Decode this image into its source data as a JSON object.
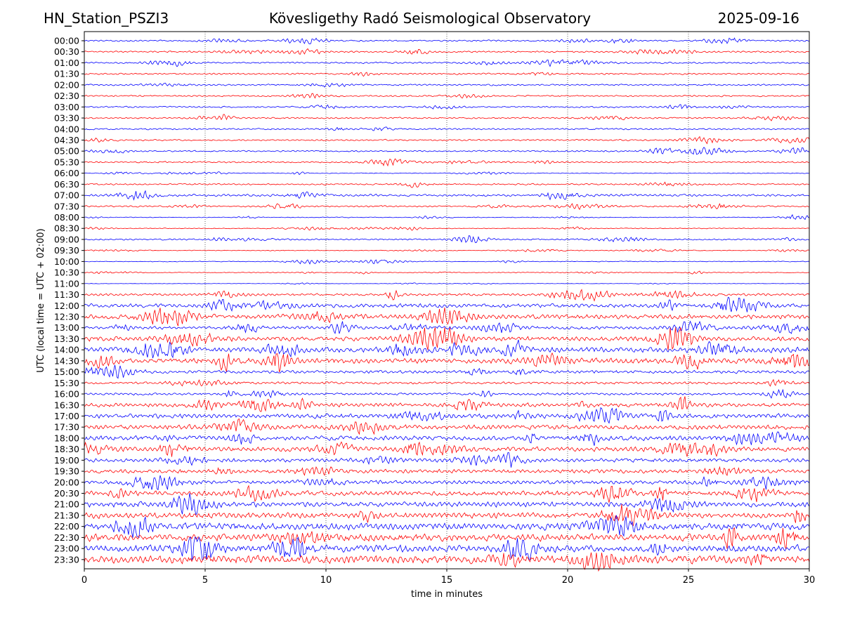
{
  "header": {
    "station": "HN_Station_PSZI3",
    "title": "Kövesligethy Radó Seismological Observatory",
    "date": "2025-09-16"
  },
  "chart_data": {
    "type": "line",
    "subtype": "helicorder",
    "xlabel": "time in minutes",
    "ylabel": "UTC (local time = UTC + 02:00)",
    "xlim": [
      0,
      30
    ],
    "xticks": [
      "0",
      "5",
      "10",
      "15",
      "20",
      "25",
      "30"
    ],
    "grid": "vertical dotted lines at 5-minute intervals",
    "colors": [
      "#0000ff",
      "#ff0000"
    ],
    "rows": [
      "00:00",
      "00:30",
      "01:00",
      "01:30",
      "02:00",
      "02:30",
      "03:00",
      "03:30",
      "04:00",
      "04:30",
      "05:00",
      "05:30",
      "06:00",
      "06:30",
      "07:00",
      "07:30",
      "08:00",
      "08:30",
      "09:00",
      "09:30",
      "10:00",
      "10:30",
      "11:00",
      "11:30",
      "12:00",
      "12:30",
      "13:00",
      "13:30",
      "14:00",
      "14:30",
      "15:00",
      "15:30",
      "16:00",
      "16:30",
      "17:00",
      "17:30",
      "18:00",
      "18:30",
      "19:00",
      "19:30",
      "20:00",
      "20:30",
      "21:00",
      "21:30",
      "22:00",
      "22:30",
      "23:00",
      "23:30"
    ],
    "noise_level": [
      2,
      2,
      2,
      2,
      2,
      2,
      2,
      2,
      2,
      2,
      2,
      2,
      1,
      2,
      3,
      2,
      1,
      1,
      2,
      1,
      1,
      1,
      0.5,
      3,
      5,
      6,
      4,
      6,
      7,
      7,
      4,
      3,
      3,
      5,
      6,
      6,
      6,
      6,
      5,
      5,
      5,
      6,
      7,
      7,
      9,
      9,
      9,
      10
    ]
  }
}
